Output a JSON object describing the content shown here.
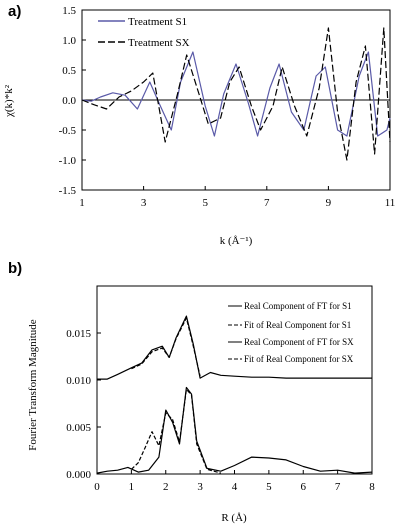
{
  "panel_a": {
    "label": "a)",
    "ylabel": "χ(k)*k²",
    "xlabel": "k (Å⁻¹)",
    "legend": [
      "Treatment S1",
      "Treatment SX"
    ]
  },
  "panel_b": {
    "label": "b)",
    "ylabel": "Fourier Transform Magnitude",
    "xlabel": "R (Å)",
    "legend": [
      "Real Component of FT for S1",
      "Fit of Real Component for S1",
      "Real Component of FT for SX",
      "Fit of Real Component for SX"
    ]
  },
  "colors": {
    "s1_line": "#5a5aa8",
    "sx_line": "#000000",
    "axis": "#000000",
    "zero_line": "#000000"
  },
  "chart_data": [
    {
      "type": "line",
      "title": "",
      "xlabel": "k (Å⁻¹)",
      "ylabel": "χ(k)*k²",
      "xlim": [
        1,
        11
      ],
      "ylim": [
        -1.5,
        1.5
      ],
      "x_ticks": [
        "1",
        "3",
        "5",
        "7",
        "9",
        "11"
      ],
      "y_ticks": [
        "-1.5",
        "-1.0",
        "-0.5",
        "0.0",
        "0.5",
        "1.0",
        "1.5"
      ],
      "grid": false,
      "legend_position": "top-left",
      "series": [
        {
          "name": "Treatment S1",
          "style": "solid",
          "x": [
            1.0,
            1.3,
            1.6,
            2.0,
            2.4,
            2.8,
            3.2,
            3.5,
            3.9,
            4.2,
            4.6,
            5.0,
            5.3,
            5.6,
            6.0,
            6.4,
            6.7,
            7.1,
            7.4,
            7.8,
            8.2,
            8.6,
            8.9,
            9.3,
            9.6,
            10.0,
            10.3,
            10.6,
            10.9,
            11.0
          ],
          "y": [
            0.0,
            -0.02,
            0.05,
            0.12,
            0.08,
            -0.15,
            0.3,
            -0.05,
            -0.5,
            0.3,
            0.8,
            -0.1,
            -0.6,
            0.1,
            0.6,
            -0.05,
            -0.6,
            0.2,
            0.6,
            -0.2,
            -0.5,
            0.4,
            0.55,
            -0.5,
            -0.6,
            0.4,
            0.8,
            -0.6,
            -0.5,
            -0.3
          ]
        },
        {
          "name": "Treatment SX",
          "style": "dashed",
          "x": [
            1.0,
            1.4,
            1.8,
            2.2,
            2.6,
            3.0,
            3.3,
            3.7,
            4.1,
            4.4,
            4.8,
            5.1,
            5.5,
            5.8,
            6.1,
            6.5,
            6.8,
            7.2,
            7.5,
            7.9,
            8.3,
            8.7,
            9.0,
            9.3,
            9.6,
            9.9,
            10.2,
            10.5,
            10.8,
            11.0
          ],
          "y": [
            0.0,
            -0.08,
            -0.15,
            0.05,
            0.15,
            0.3,
            0.45,
            -0.7,
            0.1,
            0.75,
            0.1,
            -0.4,
            -0.3,
            0.3,
            0.55,
            -0.1,
            -0.5,
            -0.1,
            0.55,
            -0.1,
            -0.6,
            0.2,
            1.2,
            -0.2,
            -1.0,
            0.3,
            0.9,
            -0.9,
            1.2,
            -0.7
          ]
        }
      ]
    },
    {
      "type": "line",
      "title": "",
      "xlabel": "R (Å)",
      "ylabel": "Fourier Transform Magnitude",
      "xlim": [
        0,
        8
      ],
      "ylim": [
        0,
        0.02
      ],
      "x_ticks": [
        "0",
        "1",
        "2",
        "3",
        "4",
        "5",
        "6",
        "7",
        "8"
      ],
      "y_ticks": [
        "0.000",
        "0.005",
        "0.010",
        "0.015"
      ],
      "grid": false,
      "legend_position": "top-right",
      "series": [
        {
          "name": "Real Component of FT for S1",
          "style": "solid",
          "x": [
            0.0,
            0.3,
            0.6,
            1.0,
            1.3,
            1.6,
            1.9,
            2.1,
            2.3,
            2.6,
            2.8,
            3.0,
            3.3,
            3.6,
            4.0,
            4.5,
            5.0,
            5.5,
            6.0,
            6.5,
            7.0,
            7.5,
            8.0
          ],
          "y": [
            0.0101,
            0.0101,
            0.0106,
            0.0113,
            0.0118,
            0.0132,
            0.0136,
            0.0124,
            0.0145,
            0.0168,
            0.0138,
            0.0102,
            0.0108,
            0.0105,
            0.0104,
            0.0103,
            0.0103,
            0.0102,
            0.0102,
            0.0102,
            0.0102,
            0.0102,
            0.0102
          ]
        },
        {
          "name": "Fit of Real Component for S1",
          "style": "dashed",
          "x": [
            1.0,
            1.3,
            1.6,
            1.9,
            2.1,
            2.3,
            2.6,
            2.8,
            3.0
          ],
          "y": [
            0.0112,
            0.0117,
            0.013,
            0.0134,
            0.0124,
            0.0144,
            0.0166,
            0.0136,
            0.0104
          ]
        },
        {
          "name": "Real Component of FT for SX",
          "style": "solid",
          "x": [
            0.0,
            0.3,
            0.6,
            0.9,
            1.2,
            1.5,
            1.8,
            2.0,
            2.2,
            2.4,
            2.6,
            2.75,
            2.9,
            3.2,
            3.6,
            4.0,
            4.5,
            5.0,
            5.5,
            6.0,
            6.5,
            7.0,
            7.5,
            8.0
          ],
          "y": [
            0.0001,
            0.0003,
            0.0004,
            0.0007,
            0.0002,
            0.0004,
            0.0018,
            0.0068,
            0.0055,
            0.0032,
            0.0092,
            0.0085,
            0.0035,
            0.0006,
            0.0003,
            0.0009,
            0.0018,
            0.0017,
            0.0015,
            0.0008,
            0.0003,
            0.0004,
            0.0001,
            0.0002
          ]
        },
        {
          "name": "Fit of Real Component for SX",
          "style": "dashed",
          "x": [
            1.0,
            1.2,
            1.4,
            1.6,
            1.8,
            2.0,
            2.2,
            2.4,
            2.6,
            2.75,
            2.9,
            3.2,
            3.6
          ],
          "y": [
            0.0005,
            0.0012,
            0.0028,
            0.0045,
            0.003,
            0.0065,
            0.0058,
            0.0034,
            0.009,
            0.0084,
            0.0032,
            0.0005,
            0.0001
          ]
        }
      ]
    }
  ]
}
